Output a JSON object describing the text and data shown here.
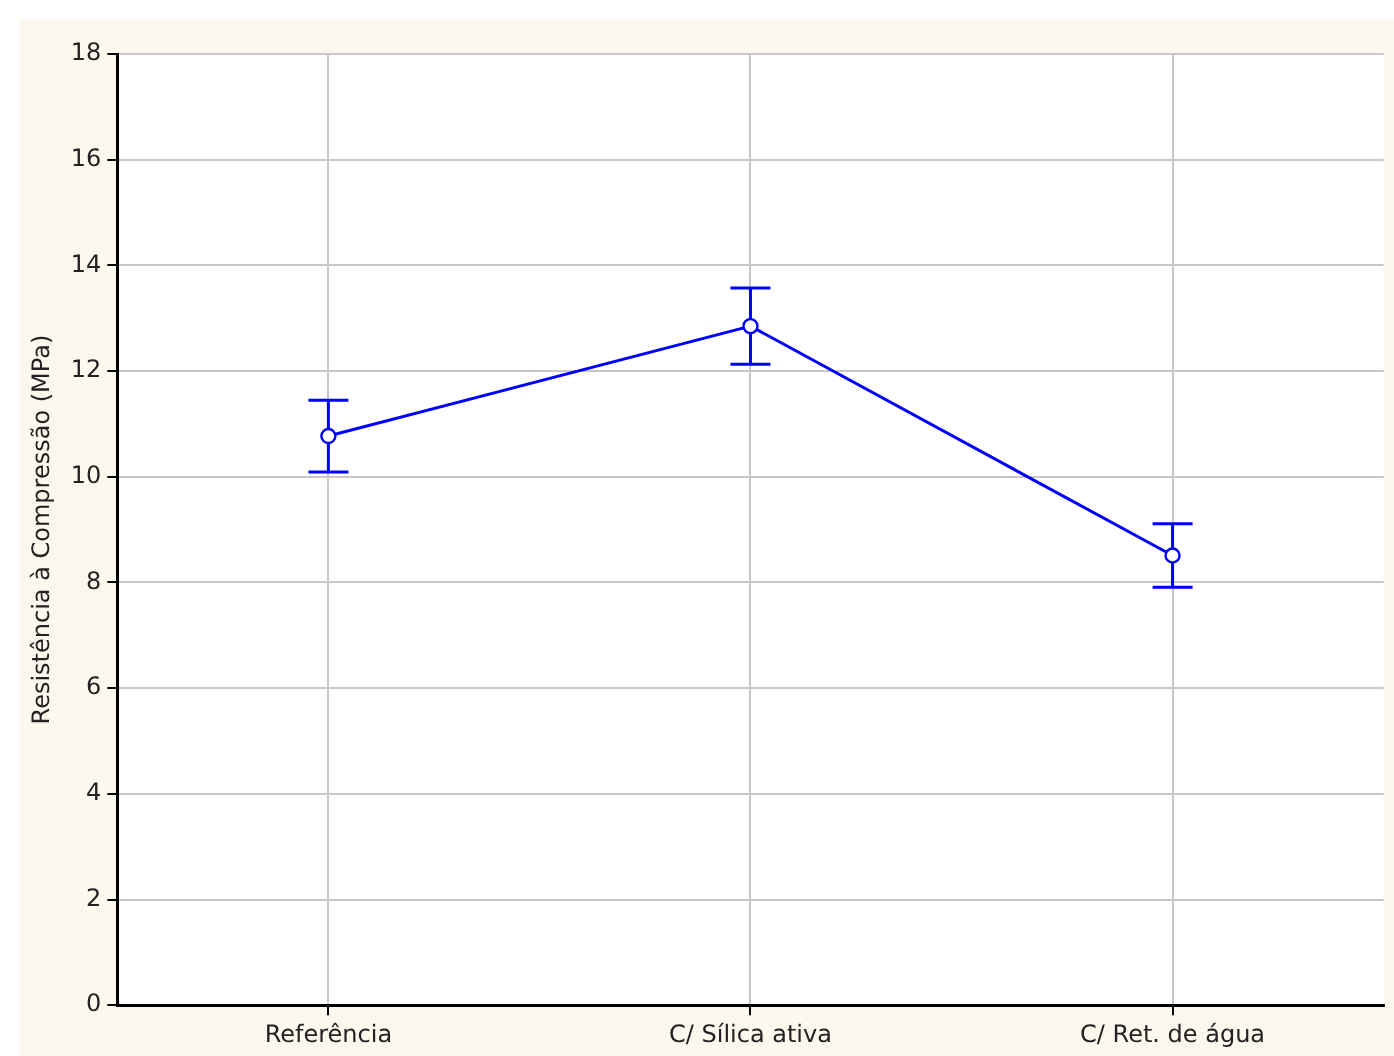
{
  "chart_data": {
    "type": "line",
    "ylabel": "Resistência à Compressão (MPa)",
    "categories": [
      "Referência",
      "C/ Sílica ativa",
      "C/ Ret. de água"
    ],
    "series": [
      {
        "color": "#0000ff",
        "values": [
          10.77,
          12.85,
          8.51
        ],
        "errors": [
          0.68,
          0.72,
          0.6
        ]
      }
    ],
    "ylim": [
      0,
      18
    ],
    "yticks": [
      0,
      2,
      4,
      6,
      8,
      10,
      12,
      14,
      16,
      18
    ],
    "grid": true,
    "legend": false,
    "marker": "circle",
    "line_style": "solid"
  }
}
